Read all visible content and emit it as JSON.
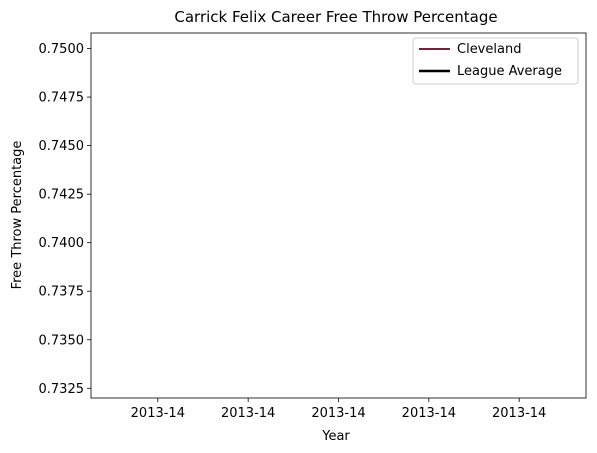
{
  "chart_data": {
    "type": "line",
    "title": "Carrick Felix Career Free Throw Percentage",
    "xlabel": "Year",
    "ylabel": "Free Throw Percentage",
    "x_tick_labels": [
      "2013-14",
      "2013-14",
      "2013-14",
      "2013-14",
      "2013-14"
    ],
    "y_tick_labels": [
      "0.7325",
      "0.7350",
      "0.7375",
      "0.7400",
      "0.7425",
      "0.7450",
      "0.7475",
      "0.7500"
    ],
    "ylim": [
      0.732,
      0.7508
    ],
    "grid": false,
    "legend_position": "top-right",
    "series": [
      {
        "name": "Cleveland",
        "color": "#6f263d",
        "values": []
      },
      {
        "name": "League Average",
        "color": "#000000",
        "values": []
      }
    ]
  }
}
